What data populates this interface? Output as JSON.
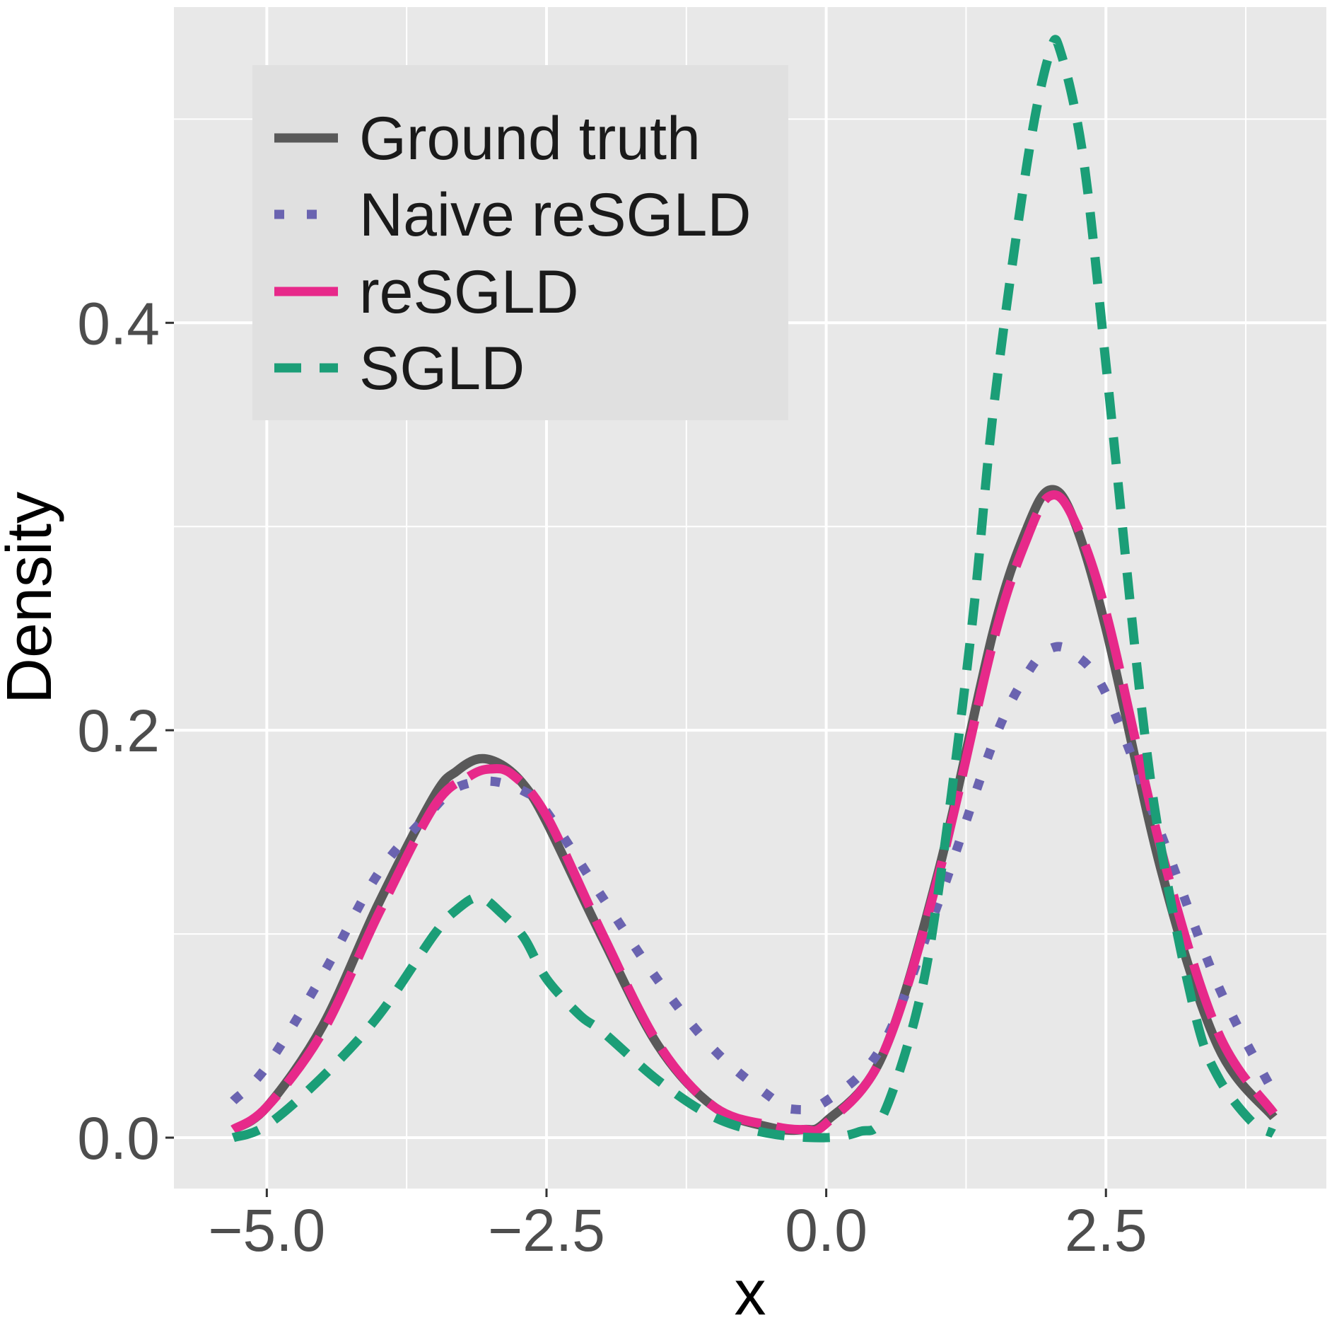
{
  "chart_data": {
    "type": "line",
    "title": "",
    "xlabel": "x",
    "ylabel": "Density",
    "xlim": [
      -5.83,
      4.47
    ],
    "ylim": [
      -0.025,
      0.555
    ],
    "x_ticks": [
      -5.0,
      -2.5,
      0.0,
      2.5
    ],
    "x_tick_labels": [
      "−5.0",
      "−2.5",
      "0.0",
      "2.5"
    ],
    "y_ticks": [
      0.0,
      0.2,
      0.4
    ],
    "y_tick_labels": [
      "0.0",
      "0.2",
      "0.4"
    ],
    "grid": true,
    "legend_position": "top-left",
    "background": "#e8e8e8",
    "series": [
      {
        "name": "Ground truth",
        "color": "#595959",
        "style": "solid",
        "x": [
          -5.3,
          -5.0,
          -4.5,
          -4.0,
          -3.5,
          -3.3,
          -3.1,
          -2.9,
          -2.7,
          -2.5,
          -2.0,
          -1.5,
          -1.0,
          -0.5,
          -0.2,
          0.0,
          0.5,
          1.0,
          1.5,
          1.8,
          2.0,
          2.2,
          2.5,
          3.0,
          3.5,
          4.0
        ],
        "y": [
          0.004,
          0.015,
          0.055,
          0.115,
          0.168,
          0.18,
          0.186,
          0.183,
          0.173,
          0.155,
          0.098,
          0.045,
          0.015,
          0.005,
          0.004,
          0.008,
          0.04,
          0.13,
          0.25,
          0.3,
          0.318,
          0.305,
          0.25,
          0.13,
          0.045,
          0.01
        ]
      },
      {
        "name": "Naive reSGLD",
        "color": "#6a63b0",
        "style": "dotted",
        "x": [
          -5.3,
          -5.0,
          -4.5,
          -4.0,
          -3.5,
          -3.3,
          -3.0,
          -2.7,
          -2.5,
          -2.0,
          -1.5,
          -1.0,
          -0.5,
          -0.3,
          0.0,
          0.5,
          1.0,
          1.5,
          1.8,
          2.0,
          2.2,
          2.5,
          3.0,
          3.5,
          4.0
        ],
        "y": [
          0.018,
          0.035,
          0.08,
          0.13,
          0.162,
          0.172,
          0.175,
          0.17,
          0.16,
          0.118,
          0.077,
          0.043,
          0.02,
          0.014,
          0.018,
          0.045,
          0.115,
          0.195,
          0.228,
          0.24,
          0.238,
          0.218,
          0.148,
          0.075,
          0.022
        ]
      },
      {
        "name": "reSGLD",
        "color": "#e7298a",
        "style": "dashed-long",
        "x": [
          -5.3,
          -5.0,
          -4.5,
          -4.0,
          -3.5,
          -3.2,
          -3.0,
          -2.8,
          -2.5,
          -2.0,
          -1.5,
          -1.0,
          -0.5,
          -0.2,
          0.0,
          0.5,
          1.0,
          1.5,
          1.8,
          2.0,
          2.2,
          2.5,
          3.0,
          3.5,
          4.0
        ],
        "y": [
          0.004,
          0.015,
          0.052,
          0.11,
          0.163,
          0.177,
          0.181,
          0.178,
          0.158,
          0.1,
          0.046,
          0.015,
          0.006,
          0.004,
          0.007,
          0.04,
          0.128,
          0.245,
          0.295,
          0.315,
          0.305,
          0.258,
          0.14,
          0.052,
          0.012
        ]
      },
      {
        "name": "SGLD",
        "color": "#1b9e77",
        "style": "dashed",
        "x": [
          -5.3,
          -5.0,
          -4.5,
          -4.0,
          -3.5,
          -3.3,
          -3.1,
          -2.9,
          -2.7,
          -2.5,
          -2.2,
          -2.0,
          -1.5,
          -1.0,
          -0.5,
          0.0,
          0.3,
          0.5,
          0.8,
          1.0,
          1.3,
          1.5,
          1.8,
          2.0,
          2.1,
          2.3,
          2.5,
          2.8,
          3.0,
          3.3,
          3.5,
          3.8,
          4.0
        ],
        "y": [
          0.0,
          0.006,
          0.03,
          0.06,
          0.1,
          0.112,
          0.118,
          0.11,
          0.098,
          0.078,
          0.06,
          0.052,
          0.028,
          0.01,
          0.002,
          0.0,
          0.003,
          0.01,
          0.06,
          0.12,
          0.25,
          0.36,
          0.48,
          0.533,
          0.532,
          0.48,
          0.38,
          0.22,
          0.14,
          0.06,
          0.03,
          0.008,
          0.002
        ]
      }
    ]
  }
}
